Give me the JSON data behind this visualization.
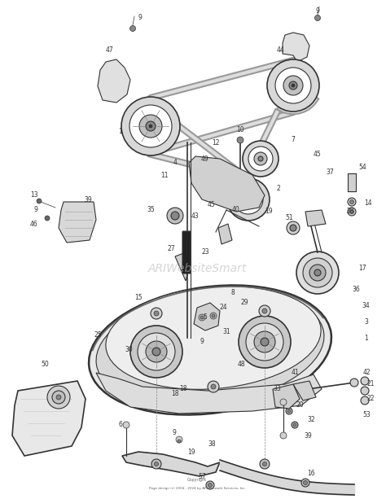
{
  "bg_color": "#ffffff",
  "fg_color": "#333333",
  "watermark": "ARIWebsiteSmart",
  "copyright_line1": "Copyright",
  "copyright_line2": "Page design (c) 2004 - 2024 by ARI Network Services, Inc.",
  "figsize": [
    4.74,
    6.13
  ],
  "dpi": 100,
  "belt_color": "#888888",
  "deck_color": "#cccccc",
  "light_gray": "#bbbbbb"
}
